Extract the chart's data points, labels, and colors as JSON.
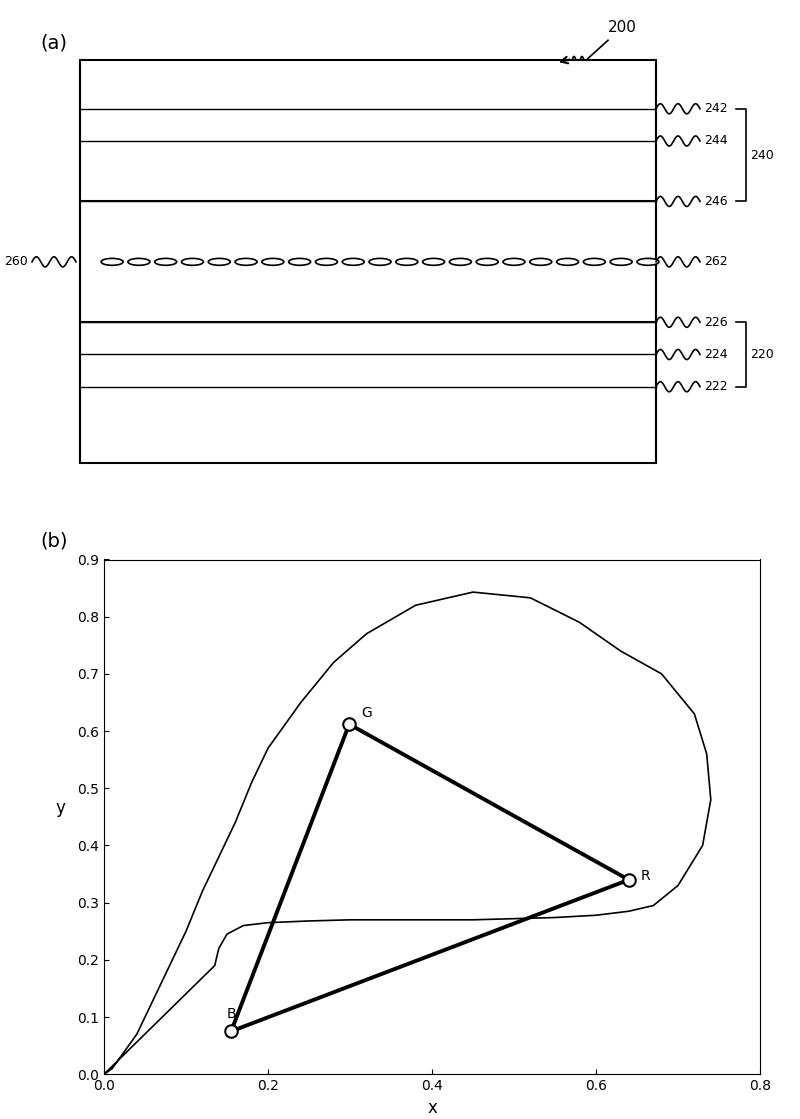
{
  "panel_a_label": "(a)",
  "panel_b_label": "(b)",
  "arrow_label": "200",
  "diagram": {
    "n_ellipses": 21
  },
  "chromaticity": {
    "G": [
      0.299,
      0.612
    ],
    "R": [
      0.64,
      0.34
    ],
    "B": [
      0.155,
      0.075
    ],
    "outer_curve_x": [
      0.0,
      0.005,
      0.01,
      0.02,
      0.04,
      0.06,
      0.08,
      0.1,
      0.12,
      0.14,
      0.16,
      0.18,
      0.2,
      0.24,
      0.28,
      0.32,
      0.38,
      0.45,
      0.52,
      0.58,
      0.63,
      0.68,
      0.72,
      0.735,
      0.74,
      0.73,
      0.7,
      0.67,
      0.64,
      0.6,
      0.55,
      0.5,
      0.45,
      0.4,
      0.35,
      0.3,
      0.25,
      0.2,
      0.17,
      0.15,
      0.14,
      0.135,
      0.0
    ],
    "outer_curve_y": [
      0.0,
      0.005,
      0.01,
      0.03,
      0.07,
      0.13,
      0.19,
      0.25,
      0.32,
      0.38,
      0.44,
      0.51,
      0.57,
      0.65,
      0.72,
      0.77,
      0.82,
      0.843,
      0.833,
      0.79,
      0.74,
      0.7,
      0.63,
      0.56,
      0.48,
      0.4,
      0.33,
      0.295,
      0.285,
      0.278,
      0.274,
      0.272,
      0.27,
      0.27,
      0.27,
      0.27,
      0.268,
      0.265,
      0.26,
      0.245,
      0.22,
      0.19,
      0.0
    ],
    "xlim": [
      0.0,
      0.8
    ],
    "ylim": [
      0.0,
      0.9
    ],
    "xlabel": "x",
    "ylabel": "y",
    "xticks": [
      0.0,
      0.2,
      0.4,
      0.6,
      0.8
    ],
    "yticks": [
      0.0,
      0.1,
      0.2,
      0.3,
      0.4,
      0.5,
      0.6,
      0.7,
      0.8,
      0.9
    ]
  }
}
